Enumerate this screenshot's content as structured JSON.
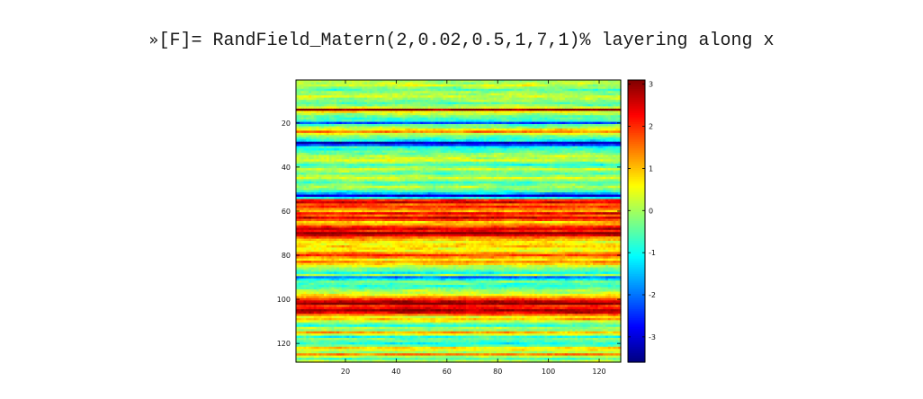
{
  "command": {
    "prompt": "»",
    "text": "[F]= RandField_Matern(2,0.02,0.5,1,7,1)% layering along x"
  },
  "chart_data": {
    "type": "heatmap",
    "colormap": "jet",
    "grid": false,
    "xlim": [
      0.5,
      128.5
    ],
    "ylim": [
      0.5,
      128.5
    ],
    "y_direction": "reversed",
    "x_ticks": [
      20,
      40,
      60,
      80,
      100,
      120
    ],
    "x_tick_labels": [
      "20",
      "40",
      "60",
      "80",
      "100",
      "120"
    ],
    "y_ticks": [
      20,
      40,
      60,
      80,
      100,
      120
    ],
    "y_tick_labels": [
      "20",
      "40",
      "60",
      "80",
      "100",
      "120"
    ],
    "colorbar": {
      "position": "right",
      "range": [
        -3.6,
        3.1
      ],
      "ticks": [
        3,
        2,
        1,
        0,
        -1,
        -2,
        -3
      ],
      "tick_labels": [
        "3",
        "2",
        "1",
        "0",
        "-1",
        "-2",
        "-3"
      ]
    },
    "n_rows": 128,
    "n_cols": 128,
    "row_profile": [
      [
        1,
        0.0
      ],
      [
        3,
        0.2
      ],
      [
        5,
        -0.5
      ],
      [
        8,
        0.3
      ],
      [
        11,
        -0.6
      ],
      [
        13,
        0.4
      ],
      [
        14,
        3.0
      ],
      [
        15,
        0.6
      ],
      [
        17,
        -0.4
      ],
      [
        19,
        -0.8
      ],
      [
        20,
        -2.3
      ],
      [
        21,
        -0.5
      ],
      [
        23,
        0.6
      ],
      [
        24,
        1.5
      ],
      [
        25,
        0.3
      ],
      [
        27,
        -0.6
      ],
      [
        28,
        -1.2
      ],
      [
        29,
        -3.2
      ],
      [
        30,
        -2.4
      ],
      [
        31,
        -1.0
      ],
      [
        33,
        -0.5
      ],
      [
        35,
        0.1
      ],
      [
        37,
        0.3
      ],
      [
        39,
        -0.7
      ],
      [
        41,
        0.2
      ],
      [
        43,
        -0.5
      ],
      [
        45,
        0.4
      ],
      [
        47,
        -0.7
      ],
      [
        49,
        0.1
      ],
      [
        51,
        -0.8
      ],
      [
        52,
        -1.6
      ],
      [
        53,
        -3.0
      ],
      [
        54,
        -1.0
      ],
      [
        55,
        2.0
      ],
      [
        56,
        2.7
      ],
      [
        57,
        1.6
      ],
      [
        58,
        2.0
      ],
      [
        60,
        1.1
      ],
      [
        61,
        2.3
      ],
      [
        62,
        1.7
      ],
      [
        63,
        2.6
      ],
      [
        64,
        1.8
      ],
      [
        65,
        0.9
      ],
      [
        66,
        1.2
      ],
      [
        67,
        2.0
      ],
      [
        68,
        2.6
      ],
      [
        69,
        2.1
      ],
      [
        70,
        3.1
      ],
      [
        71,
        2.4
      ],
      [
        72,
        1.5
      ],
      [
        74,
        0.6
      ],
      [
        76,
        0.9
      ],
      [
        78,
        0.5
      ],
      [
        79,
        1.3
      ],
      [
        80,
        2.0
      ],
      [
        82,
        0.6
      ],
      [
        83,
        1.4
      ],
      [
        85,
        0.3
      ],
      [
        87,
        -0.5
      ],
      [
        88,
        -1.1
      ],
      [
        89,
        0.0
      ],
      [
        90,
        -2.0
      ],
      [
        91,
        -1.3
      ],
      [
        92,
        -0.4
      ],
      [
        94,
        -0.8
      ],
      [
        96,
        0.0
      ],
      [
        98,
        0.6
      ],
      [
        100,
        1.9
      ],
      [
        101,
        2.7
      ],
      [
        102,
        3.1
      ],
      [
        103,
        2.0
      ],
      [
        104,
        2.3
      ],
      [
        105,
        2.9
      ],
      [
        106,
        2.5
      ],
      [
        107,
        1.6
      ],
      [
        108,
        0.6
      ],
      [
        109,
        1.0
      ],
      [
        110,
        0.3
      ],
      [
        111,
        -0.4
      ],
      [
        112,
        -0.9
      ],
      [
        113,
        0.1
      ],
      [
        114,
        -0.2
      ],
      [
        115,
        1.2
      ],
      [
        116,
        0.4
      ],
      [
        117,
        -0.9
      ],
      [
        118,
        -0.3
      ],
      [
        120,
        -0.9
      ],
      [
        121,
        -0.4
      ],
      [
        122,
        0.8
      ],
      [
        124,
        0.1
      ],
      [
        125,
        1.4
      ],
      [
        126,
        0.2
      ],
      [
        127,
        -0.5
      ],
      [
        128,
        0.1
      ]
    ]
  }
}
